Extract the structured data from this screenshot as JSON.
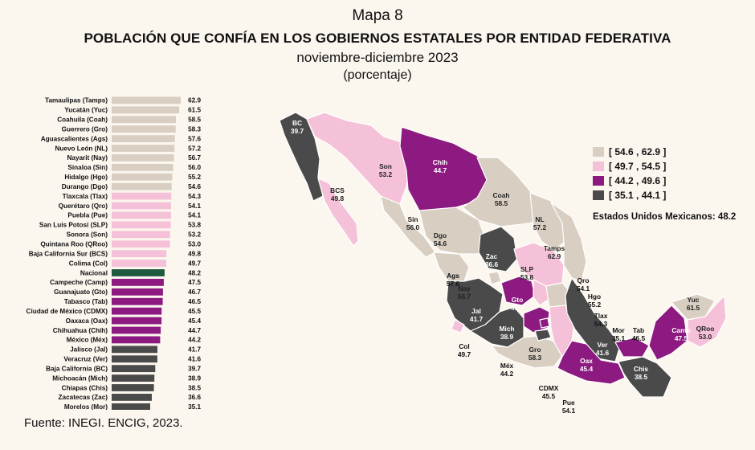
{
  "header": {
    "map_number": "Mapa 8",
    "title": "POBLACIÓN QUE CONFÍA EN LOS GOBIERNOS ESTATALES POR ENTIDAD FEDERATIVA",
    "period": "noviembre-diciembre 2023",
    "unit": "(porcentaje)"
  },
  "colors": {
    "beige": "#d8cfc2",
    "pink": "#f5c1d8",
    "purple": "#8c1a80",
    "dark": "#4a4a4a",
    "national": "#1e5a3e"
  },
  "legend": {
    "items": [
      {
        "label": "[ 54.6 , 62.9 ]",
        "color": "#d8cfc2"
      },
      {
        "label": "[ 49.7 , 54.5 ]",
        "color": "#f5c1d8"
      },
      {
        "label": "[ 44.2 , 49.6 ]",
        "color": "#8c1a80"
      },
      {
        "label": "[ 35.1 , 44.1 ]",
        "color": "#4a4a4a"
      }
    ],
    "national_note": "Estados Unidos Mexicanos:  48.2"
  },
  "chart_data": {
    "type": "bar",
    "orientation": "horizontal",
    "categories": [
      "Tamaulipas (Tamps)",
      "Yucatán (Yuc)",
      "Coahuila (Coah)",
      "Guerrero (Gro)",
      "Aguascalientes (Ags)",
      "Nuevo León (NL)",
      "Nayarit (Nay)",
      "Sinaloa (Sin)",
      "Hidalgo (Hgo)",
      "Durango (Dgo)",
      "Tlaxcala (Tlax)",
      "Querétaro (Qro)",
      "Puebla (Pue)",
      "San Luis Potosí (SLP)",
      "Sonora (Son)",
      "Quintana Roo (QRoo)",
      "Baja California Sur (BCS)",
      "Colima (Col)",
      "Nacional",
      "Campeche (Camp)",
      "Guanajuato (Gto)",
      "Tabasco (Tab)",
      "Ciudad de México (CDMX)",
      "Oaxaca (Oax)",
      "Chihuahua (Chih)",
      "México (Méx)",
      "Jalisco (Jal)",
      "Veracruz (Ver)",
      "Baja California (BC)",
      "Michoacán (Mich)",
      "Chiapas (Chis)",
      "Zacatecas (Zac)",
      "Morelos (Mor)"
    ],
    "values": [
      62.9,
      61.5,
      58.5,
      58.3,
      57.6,
      57.2,
      56.7,
      56.0,
      55.2,
      54.6,
      54.3,
      54.1,
      54.1,
      53.8,
      53.2,
      53.0,
      49.8,
      49.7,
      48.2,
      47.5,
      46.7,
      46.5,
      45.5,
      45.4,
      44.7,
      44.2,
      41.7,
      41.6,
      39.7,
      38.9,
      38.5,
      36.6,
      35.1
    ],
    "value_labels": [
      "62.9",
      "61.5",
      "58.5",
      "58.3",
      "57.6",
      "57.2",
      "56.7",
      "56.0",
      "55.2",
      "54.6",
      "54.3",
      "54.1",
      "54.1",
      "53.8",
      "53.2",
      "53.0",
      "49.8",
      "49.7",
      "48.2",
      "47.5",
      "46.7",
      "46.5",
      "45.5",
      "45.4",
      "44.7",
      "44.2",
      "41.7",
      "41.6",
      "39.7",
      "38.9",
      "38.5",
      "36.6",
      "35.1"
    ],
    "classes": [
      "beige",
      "beige",
      "beige",
      "beige",
      "beige",
      "beige",
      "beige",
      "beige",
      "beige",
      "beige",
      "pink",
      "pink",
      "pink",
      "pink",
      "pink",
      "pink",
      "pink",
      "pink",
      "national",
      "purple",
      "purple",
      "purple",
      "purple",
      "purple",
      "purple",
      "purple",
      "dark",
      "dark",
      "dark",
      "dark",
      "dark",
      "dark",
      "dark"
    ]
  },
  "map": {
    "states": [
      {
        "abbr": "BC",
        "value": "39.7",
        "cls": "dark"
      },
      {
        "abbr": "BCS",
        "value": "49.8",
        "cls": "pink"
      },
      {
        "abbr": "Son",
        "value": "53.2",
        "cls": "pink"
      },
      {
        "abbr": "Chih",
        "value": "44.7",
        "cls": "purple"
      },
      {
        "abbr": "Coah",
        "value": "58.5",
        "cls": "beige"
      },
      {
        "abbr": "NL",
        "value": "57.2",
        "cls": "beige"
      },
      {
        "abbr": "Tamps",
        "value": "62.9",
        "cls": "beige"
      },
      {
        "abbr": "Sin",
        "value": "56.0",
        "cls": "beige"
      },
      {
        "abbr": "Dgo",
        "value": "54.6",
        "cls": "beige"
      },
      {
        "abbr": "Zac",
        "value": "36.6",
        "cls": "dark"
      },
      {
        "abbr": "SLP",
        "value": "53.8",
        "cls": "pink"
      },
      {
        "abbr": "Ags",
        "value": "57.6",
        "cls": "beige"
      },
      {
        "abbr": "Nay",
        "value": "56.7",
        "cls": "beige"
      },
      {
        "abbr": "Jal",
        "value": "41.7",
        "cls": "dark"
      },
      {
        "abbr": "Gto",
        "value": "46.7",
        "cls": "purple"
      },
      {
        "abbr": "Qro",
        "value": "54.1",
        "cls": "pink"
      },
      {
        "abbr": "Hgo",
        "value": "55.2",
        "cls": "beige"
      },
      {
        "abbr": "Col",
        "value": "49.7",
        "cls": "pink"
      },
      {
        "abbr": "Mich",
        "value": "38.9",
        "cls": "dark"
      },
      {
        "abbr": "Méx",
        "value": "44.2",
        "cls": "purple"
      },
      {
        "abbr": "CDMX",
        "value": "45.5",
        "cls": "purple"
      },
      {
        "abbr": "Gro",
        "value": "58.3",
        "cls": "beige"
      },
      {
        "abbr": "Mor",
        "value": "35.1",
        "cls": "dark"
      },
      {
        "abbr": "Tlax",
        "value": "54.3",
        "cls": "pink"
      },
      {
        "abbr": "Pue",
        "value": "54.1",
        "cls": "pink"
      },
      {
        "abbr": "Ver",
        "value": "41.6",
        "cls": "dark"
      },
      {
        "abbr": "Oax",
        "value": "45.4",
        "cls": "purple"
      },
      {
        "abbr": "Tab",
        "value": "46.5",
        "cls": "purple"
      },
      {
        "abbr": "Chis",
        "value": "38.5",
        "cls": "dark"
      },
      {
        "abbr": "Camp",
        "value": "47.5",
        "cls": "purple"
      },
      {
        "abbr": "Yuc",
        "value": "61.5",
        "cls": "beige"
      },
      {
        "abbr": "QRoo",
        "value": "53.0",
        "cls": "pink"
      }
    ]
  },
  "source": "Fuente: INEGI. ENCIG, 2023."
}
